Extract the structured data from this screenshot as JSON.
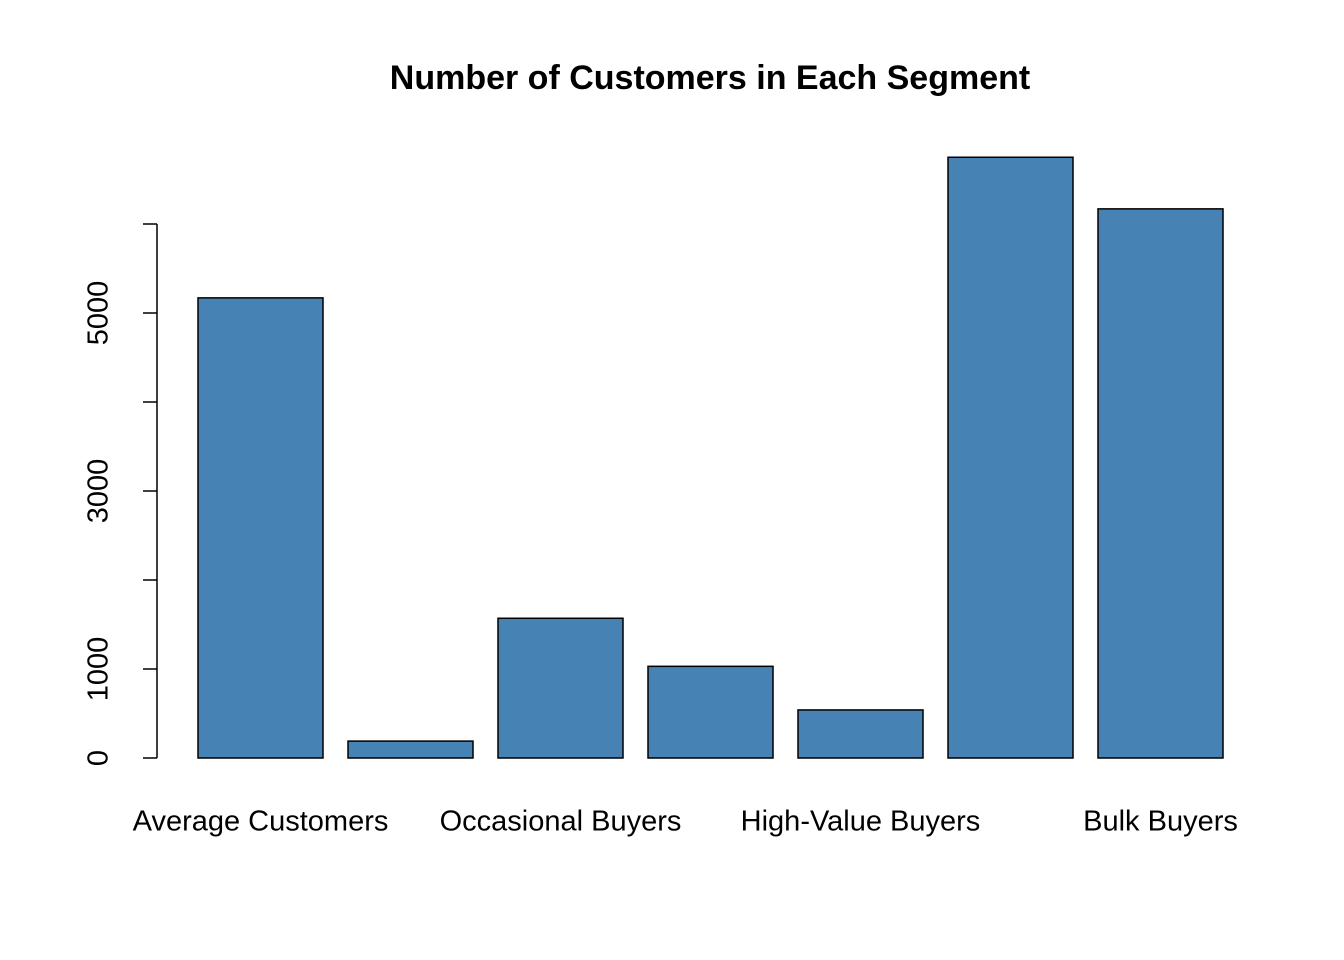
{
  "chart_data": {
    "type": "bar",
    "title": "Number of Customers in Each Segment",
    "categories": [
      "Average Customers",
      null,
      "Occasional Buyers",
      null,
      "High-Value Buyers",
      null,
      "Bulk Buyers"
    ],
    "values": [
      5170,
      190,
      1570,
      1030,
      540,
      6750,
      6170
    ],
    "color": "#4682b4",
    "ylim": [
      0,
      7000
    ],
    "yticks": [
      0,
      1000,
      {
        "value": 2000,
        "label": null
      },
      3000,
      {
        "value": 4000,
        "label": null
      },
      5000,
      {
        "value": 6000,
        "label": null
      }
    ],
    "grid": false
  }
}
